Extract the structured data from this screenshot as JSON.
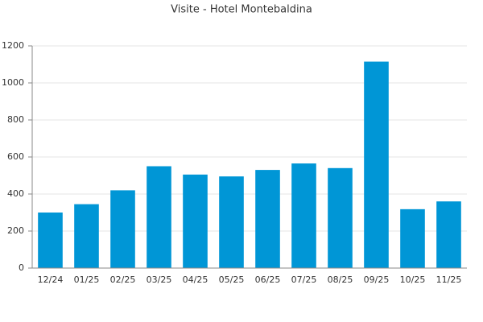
{
  "chart_data": {
    "type": "bar",
    "title": "Visite - Hotel Montebaldina",
    "categories": [
      "12/24",
      "01/25",
      "02/25",
      "03/25",
      "04/25",
      "05/25",
      "06/25",
      "07/25",
      "08/25",
      "09/25",
      "10/25",
      "11/25"
    ],
    "values": [
      300,
      345,
      420,
      550,
      505,
      495,
      530,
      565,
      540,
      1115,
      318,
      360
    ],
    "color": "#0096d6",
    "ylim": [
      0,
      1200
    ],
    "yticks": [
      0,
      200,
      400,
      600,
      800,
      1000,
      1200
    ],
    "grid": true
  }
}
